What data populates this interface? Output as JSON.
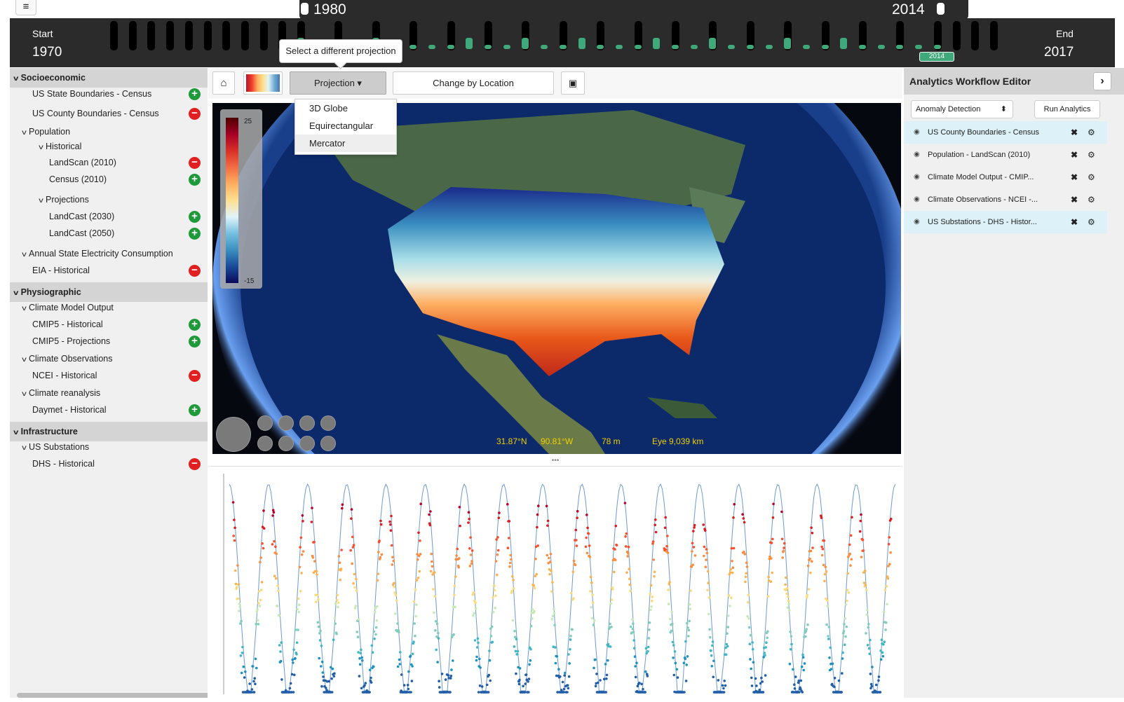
{
  "menu_icon": "≡",
  "timeline": {
    "start_label": "Start",
    "start_year": "1970",
    "end_label": "End",
    "end_year": "2017",
    "range_start": "1980",
    "range_end": "2014",
    "selected_badge": "2014",
    "accent": "#3fa97b"
  },
  "sidebar": {
    "rows": [
      {
        "label": "Socioeconomic",
        "kind": "category"
      },
      {
        "label": "US State Boundaries - Census",
        "action": "plus"
      },
      {
        "label": "US County Boundaries - Census",
        "action": "minus"
      },
      {
        "label": "Population",
        "kind": "group"
      },
      {
        "label": "Historical",
        "kind": "group"
      },
      {
        "label": "LandScan (2010)",
        "action": "minus"
      },
      {
        "label": "Census (2010)",
        "action": "plus"
      },
      {
        "label": "Projections",
        "kind": "group"
      },
      {
        "label": "LandCast (2030)",
        "action": "plus"
      },
      {
        "label": "LandCast (2050)",
        "action": "plus"
      },
      {
        "label": "Annual State Electricity Consumption",
        "kind": "group"
      },
      {
        "label": "EIA - Historical",
        "action": "minus"
      },
      {
        "label": "Physiographic",
        "kind": "category"
      },
      {
        "label": "Climate Model Output",
        "kind": "group"
      },
      {
        "label": "CMIP5 - Historical",
        "action": "plus"
      },
      {
        "label": "CMIP5 - Projections",
        "action": "plus"
      },
      {
        "label": "Climate Observations",
        "kind": "group"
      },
      {
        "label": "NCEI - Historical",
        "action": "minus"
      },
      {
        "label": "Climate reanalysis",
        "kind": "group"
      },
      {
        "label": "Daymet - Historical",
        "action": "plus"
      },
      {
        "label": "Infrastructure",
        "kind": "category"
      },
      {
        "label": "US Substations",
        "kind": "group"
      },
      {
        "label": "DHS - Historical",
        "action": "minus"
      }
    ]
  },
  "toolbar": {
    "home_icon": "⌂",
    "projection_label": "Projection ▾",
    "change_location_label": "Change by Location",
    "save_icon": "▣",
    "tooltip": "Select a different projection",
    "projection_options": [
      "3D Globe",
      "Equirectangular",
      "Mercator"
    ],
    "selected_projection": "Mercator"
  },
  "map": {
    "colorbar_max": "25",
    "colorbar_min": "-15",
    "lat": "31.87°N",
    "lon": "90.81°W",
    "elevation": "78 m",
    "eye": "Eye  9,039 km"
  },
  "splitter_grip": "•••",
  "right_panel": {
    "title": "Analytics Workflow Editor",
    "toggle_icon": "›",
    "method": "Anomaly Detection",
    "method_arrow": "⬍",
    "run_label": "Run Analytics",
    "items": [
      {
        "label": "US County Boundaries - Census",
        "highlight": true
      },
      {
        "label": "Population - LandScan (2010)",
        "highlight": false
      },
      {
        "label": "Climate Model Output - CMIP...",
        "highlight": false
      },
      {
        "label": "Climate Observations - NCEI -...",
        "highlight": false
      },
      {
        "label": "US Substations - DHS - Histor...",
        "highlight": true
      }
    ],
    "eye_icon": "◉",
    "remove_icon": "✖",
    "gear_icon": "⚙"
  }
}
